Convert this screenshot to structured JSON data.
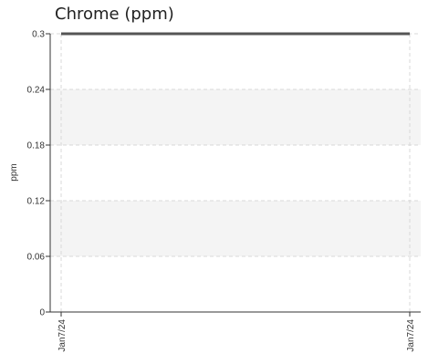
{
  "chart_data": {
    "type": "line",
    "title": "Chrome (ppm)",
    "xlabel": "",
    "ylabel": "ppm",
    "ylim": [
      0,
      0.3
    ],
    "yticks": [
      {
        "value": 0,
        "label": "0"
      },
      {
        "value": 0.06,
        "label": "0.06"
      },
      {
        "value": 0.12,
        "label": "0.12"
      },
      {
        "value": 0.18,
        "label": "0.18"
      },
      {
        "value": 0.24,
        "label": "0.24"
      },
      {
        "value": 0.3,
        "label": "0.3"
      }
    ],
    "xticks": [
      "Jan7/24",
      "Jan7/24"
    ],
    "series": [
      {
        "values": [
          0.3,
          0.3
        ]
      }
    ],
    "grid": true,
    "banded_background": true,
    "line_color": "#555555",
    "band_color": "#f4f4f4",
    "grid_color": "#d8d8d8"
  }
}
